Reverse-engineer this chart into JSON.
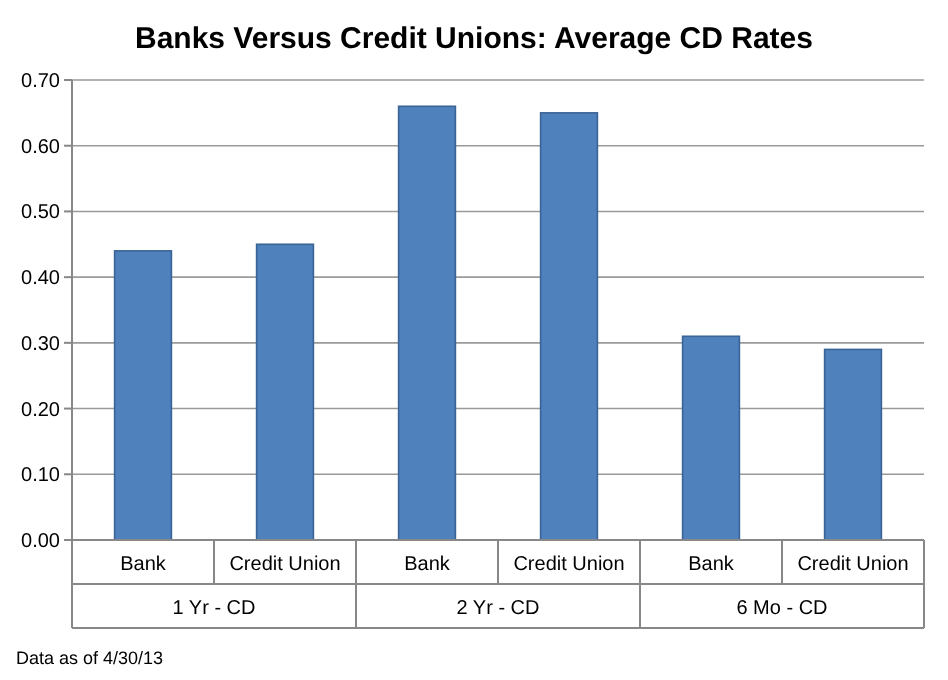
{
  "chart_data": {
    "type": "bar",
    "title": "Banks Versus Credit Unions: Average CD Rates",
    "categories": [
      "Bank",
      "Credit Union",
      "Bank",
      "Credit Union",
      "Bank",
      "Credit Union"
    ],
    "values": [
      0.44,
      0.45,
      0.66,
      0.65,
      0.31,
      0.29
    ],
    "color": "#4f81bd",
    "ylim": [
      0,
      0.7
    ],
    "yticks": [
      {
        "value": 0,
        "label": "0.00"
      },
      {
        "value": 0.1,
        "label": "0.10"
      },
      {
        "value": 0.2,
        "label": "0.20"
      },
      {
        "value": 0.3,
        "label": "0.30"
      },
      {
        "value": 0.4,
        "label": "0.40"
      },
      {
        "value": 0.5,
        "label": "0.50"
      },
      {
        "value": 0.6,
        "label": "0.60"
      },
      {
        "value": 0.7,
        "label": "0.70"
      }
    ],
    "grid": "y",
    "annotations": [
      "1 Yr - CD",
      "2 Yr - CD",
      "6 Mo - CD",
      "Data as of 4/30/13"
    ]
  }
}
